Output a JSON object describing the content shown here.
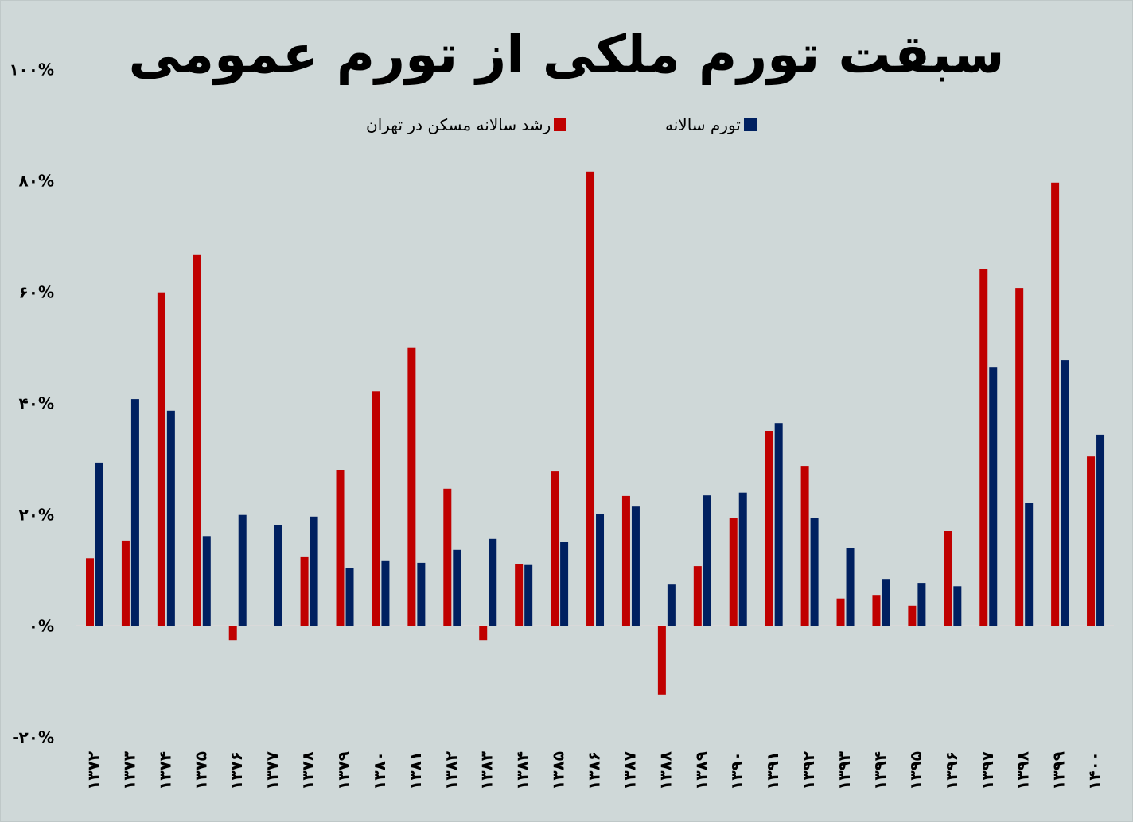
{
  "chart_data": {
    "type": "bar",
    "title": "سبقت تورم ملکی از تورم عمومی",
    "xlabel": "",
    "ylabel": "",
    "ylim": [
      -20,
      100
    ],
    "y_ticks": [
      "-۲۰%",
      "۰%",
      "۲۰%",
      "۴۰%",
      "۶۰%",
      "۸۰%",
      "۱۰۰%"
    ],
    "y_tick_values": [
      -20,
      0,
      20,
      40,
      60,
      80,
      100
    ],
    "grid": false,
    "legend_position": "top",
    "categories": [
      "۱۳۷۲",
      "۱۳۷۳",
      "۱۳۷۴",
      "۱۳۷۵",
      "۱۳۷۶",
      "۱۳۷۷",
      "۱۳۷۸",
      "۱۳۷۹",
      "۱۳۸۰",
      "۱۳۸۱",
      "۱۳۸۲",
      "۱۳۸۳",
      "۱۳۸۴",
      "۱۳۸۵",
      "۱۳۸۶",
      "۱۳۸۷",
      "۱۳۸۸",
      "۱۳۸۹",
      "۱۳۹۰",
      "۱۳۹۱",
      "۱۳۹۲",
      "۱۳۹۳",
      "۱۳۹۴",
      "۱۳۹۵",
      "۱۳۹۶",
      "۱۳۹۷",
      "۱۳۹۸",
      "۱۳۹۹",
      "۱۴۰۰"
    ],
    "series": [
      {
        "name": "رشد سالانه مسکن در تهران",
        "color": "#c00000",
        "values": [
          12.1,
          15.3,
          59.9,
          66.6,
          -2.6,
          0,
          12.3,
          28,
          42.1,
          49.9,
          24.6,
          -2.6,
          11.1,
          27.7,
          81.6,
          23.3,
          -12.4,
          10.7,
          19.3,
          35,
          28.7,
          4.9,
          5.4,
          3.6,
          17,
          64,
          60.7,
          79.6,
          30.4
        ]
      },
      {
        "name": "تورم سالانه",
        "color": "#002060",
        "values": [
          29.3,
          40.7,
          38.6,
          16.1,
          19.9,
          18.1,
          19.6,
          10.4,
          11.6,
          11.3,
          13.6,
          15.6,
          10.9,
          15,
          20.1,
          21.4,
          7.4,
          23.4,
          23.9,
          36.4,
          19.4,
          14,
          8.4,
          7.7,
          7.1,
          46.4,
          22,
          47.7,
          34.3
        ]
      }
    ]
  }
}
